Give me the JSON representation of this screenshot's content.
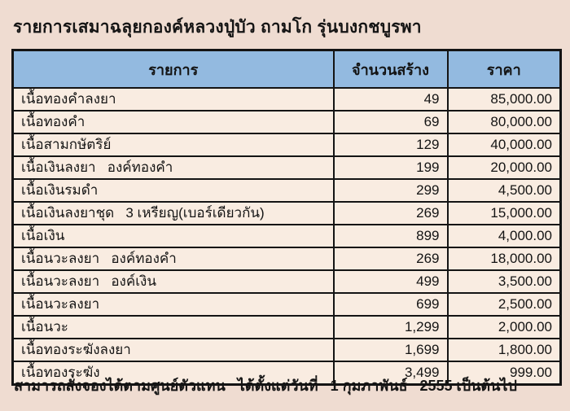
{
  "page": {
    "title": "รายการเสมาฉลุยกองค์หลวงปู่บัว ถามโก รุ่นบงกชบูรพา",
    "footer_note": "สามารถสั่งจองได้ตามศูนย์ตัวแทน   ได้ตั้งแต่วันที่   1 กุมภาพันธ์   2555 เป็นต้นไป"
  },
  "colors": {
    "page_background": "#efdcd1",
    "header_background": "#93bae0",
    "row_background": "#f9ece1",
    "border": "#141414",
    "text": "#141414"
  },
  "table": {
    "headers": [
      "รายการ",
      "จำนวนสร้าง",
      "ราคา"
    ],
    "rows": [
      {
        "item": "เนื้อทองคำลงยา",
        "qty": "49",
        "price": "85,000.00"
      },
      {
        "item": "เนื้อทองคำ",
        "qty": "69",
        "price": "80,000.00"
      },
      {
        "item": "เนื้อสามกษัตริย์",
        "qty": "129",
        "price": "40,000.00"
      },
      {
        "item": "เนื้อเงินลงยา   องค์ทองคำ",
        "qty": "199",
        "price": "20,000.00"
      },
      {
        "item": "เนื้อเงินรมดำ",
        "qty": "299",
        "price": "4,500.00"
      },
      {
        "item": "เนื้อเงินลงยาชุด   3 เหรียญ(เบอร์เดียวกัน)",
        "qty": "269",
        "price": "15,000.00"
      },
      {
        "item": "เนื้อเงิน",
        "qty": "899",
        "price": "4,000.00"
      },
      {
        "item": "เนื้อนวะลงยา   องค์ทองคำ",
        "qty": "269",
        "price": "18,000.00"
      },
      {
        "item": "เนื้อนวะลงยา   องค์เงิน",
        "qty": "499",
        "price": "3,500.00"
      },
      {
        "item": "เนื้อนวะลงยา",
        "qty": "699",
        "price": "2,500.00"
      },
      {
        "item": "เนื้อนวะ",
        "qty": "1,299",
        "price": "2,000.00"
      },
      {
        "item": "เนื้อทองระฆังลงยา",
        "qty": "1,699",
        "price": "1,800.00"
      },
      {
        "item": "เนื้อทองระฆัง",
        "qty": "3,499",
        "price": "999.00"
      }
    ]
  }
}
